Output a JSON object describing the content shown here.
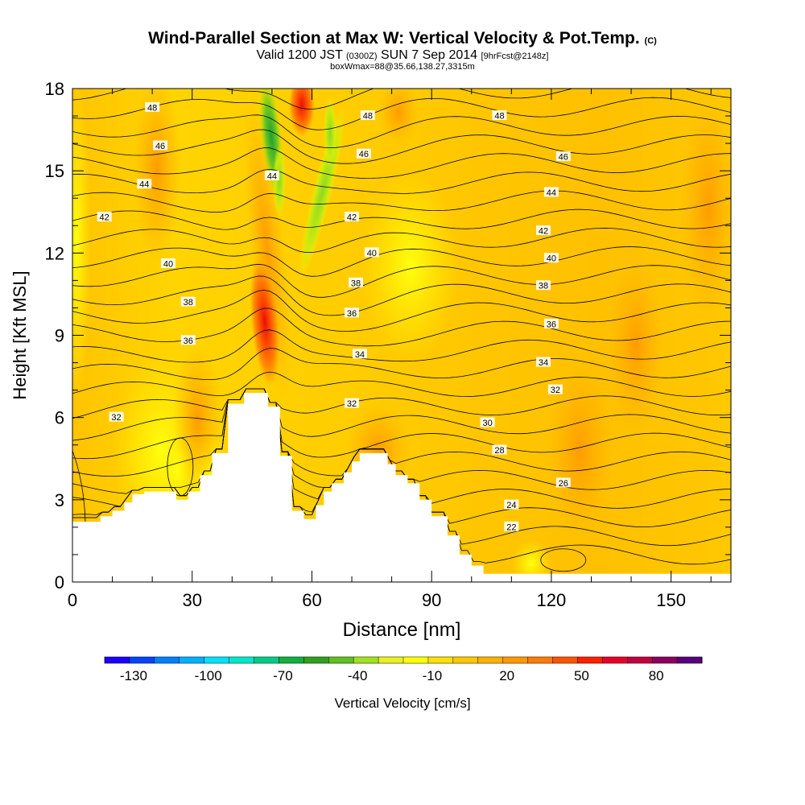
{
  "header": {
    "title": "Wind-Parallel Section at Max W: Vertical Velocity & Pot.Temp.",
    "copyright": "(C)",
    "valid_prefix": "Valid 1200 JST",
    "valid_utc": "(0300Z)",
    "valid_date": "SUN 7 Sep 2014",
    "forecast": "[9hrFcst@2148z]",
    "box_info": "boxWmax=88@35.66,138.27,3315m"
  },
  "chart_data": {
    "type": "heatmap",
    "title": "Wind-Parallel Section at Max W: Vertical Velocity & Pot.Temp.",
    "xlabel": "Distance [nm]",
    "ylabel": "Height [Kft MSL]",
    "xlim": [
      0,
      165
    ],
    "ylim": [
      0,
      18
    ],
    "x_ticks": [
      0,
      30,
      60,
      90,
      120,
      150
    ],
    "y_ticks": [
      0,
      3,
      6,
      9,
      12,
      15,
      18
    ],
    "terrain_kft": [
      [
        0,
        2.2
      ],
      [
        7,
        2.2
      ],
      [
        7,
        2.4
      ],
      [
        10,
        2.4
      ],
      [
        10,
        2.6
      ],
      [
        13,
        2.6
      ],
      [
        13,
        2.9
      ],
      [
        15,
        2.9
      ],
      [
        15,
        3.2
      ],
      [
        18,
        3.2
      ],
      [
        18,
        3.3
      ],
      [
        26,
        3.3
      ],
      [
        26,
        3.0
      ],
      [
        29,
        3.0
      ],
      [
        29,
        3.3
      ],
      [
        32,
        3.3
      ],
      [
        32,
        3.9
      ],
      [
        35,
        3.9
      ],
      [
        35,
        4.7
      ],
      [
        39,
        4.7
      ],
      [
        39,
        6.5
      ],
      [
        43,
        6.5
      ],
      [
        43,
        6.9
      ],
      [
        49,
        6.9
      ],
      [
        49,
        6.4
      ],
      [
        52,
        6.4
      ],
      [
        52,
        4.6
      ],
      [
        55,
        4.6
      ],
      [
        55,
        2.6
      ],
      [
        58,
        2.6
      ],
      [
        58,
        2.3
      ],
      [
        61,
        2.3
      ],
      [
        61,
        2.8
      ],
      [
        63,
        2.8
      ],
      [
        63,
        3.3
      ],
      [
        65,
        3.3
      ],
      [
        65,
        3.6
      ],
      [
        68,
        3.6
      ],
      [
        68,
        4.0
      ],
      [
        70,
        4.0
      ],
      [
        70,
        4.4
      ],
      [
        72,
        4.4
      ],
      [
        72,
        4.7
      ],
      [
        79,
        4.7
      ],
      [
        79,
        4.3
      ],
      [
        81,
        4.3
      ],
      [
        81,
        3.9
      ],
      [
        84,
        3.9
      ],
      [
        84,
        3.6
      ],
      [
        87,
        3.6
      ],
      [
        87,
        3.0
      ],
      [
        90,
        3.0
      ],
      [
        90,
        2.4
      ],
      [
        94,
        2.4
      ],
      [
        94,
        1.7
      ],
      [
        97,
        1.7
      ],
      [
        97,
        1.0
      ],
      [
        100,
        1.0
      ],
      [
        100,
        0.6
      ],
      [
        103,
        0.6
      ],
      [
        103,
        0.3
      ],
      [
        165,
        0.3
      ]
    ],
    "theta_contours": {
      "unit": "K",
      "levels": [
        22,
        24,
        26,
        28,
        30,
        32,
        34,
        36,
        38,
        40,
        42,
        44,
        46,
        48
      ],
      "printed_labels": [
        "48",
        "46",
        "44",
        "42",
        "40",
        "38",
        "36",
        "34",
        "32",
        "30",
        "28",
        "26",
        "24",
        "22",
        "32"
      ]
    },
    "vertical_velocity": {
      "colorbar_label": "Vertical Velocity [cm/s]",
      "colorbar_ticks": [
        -130,
        -100,
        -70,
        -40,
        -10,
        20,
        50,
        80
      ],
      "colorbar_range": [
        -140,
        100
      ],
      "colorbar_step": 10,
      "max_updraft_cm_s": 88,
      "max_updraft_location": "35.66,138.27",
      "max_updraft_height_m": 3315,
      "features": [
        {
          "kind": "updraft",
          "x_nm": 47,
          "from_kft": 7,
          "to_kft": 18,
          "peak_cm_s": 88
        },
        {
          "kind": "downdraft",
          "x_nm": 50,
          "from_kft": 14,
          "to_kft": 18,
          "min_cm_s": -50
        },
        {
          "kind": "downdraft",
          "x_nm": 62,
          "from_kft": 12,
          "to_kft": 18,
          "min_cm_s": -30
        }
      ]
    }
  },
  "colors": {
    "colorbar": [
      "#1a00ff",
      "#0044ff",
      "#0080ff",
      "#00b0ff",
      "#00e0ff",
      "#00e8c8",
      "#00cc88",
      "#10b040",
      "#30a020",
      "#60c020",
      "#a0e020",
      "#e8f020",
      "#ffff00",
      "#ffe000",
      "#ffc800",
      "#ffb000",
      "#ff9800",
      "#ff7c00",
      "#ff5400",
      "#ff2000",
      "#e8002a",
      "#c00040",
      "#8c0060",
      "#5a007a"
    ],
    "background_field": "#ffd200",
    "contour": "#000000"
  }
}
